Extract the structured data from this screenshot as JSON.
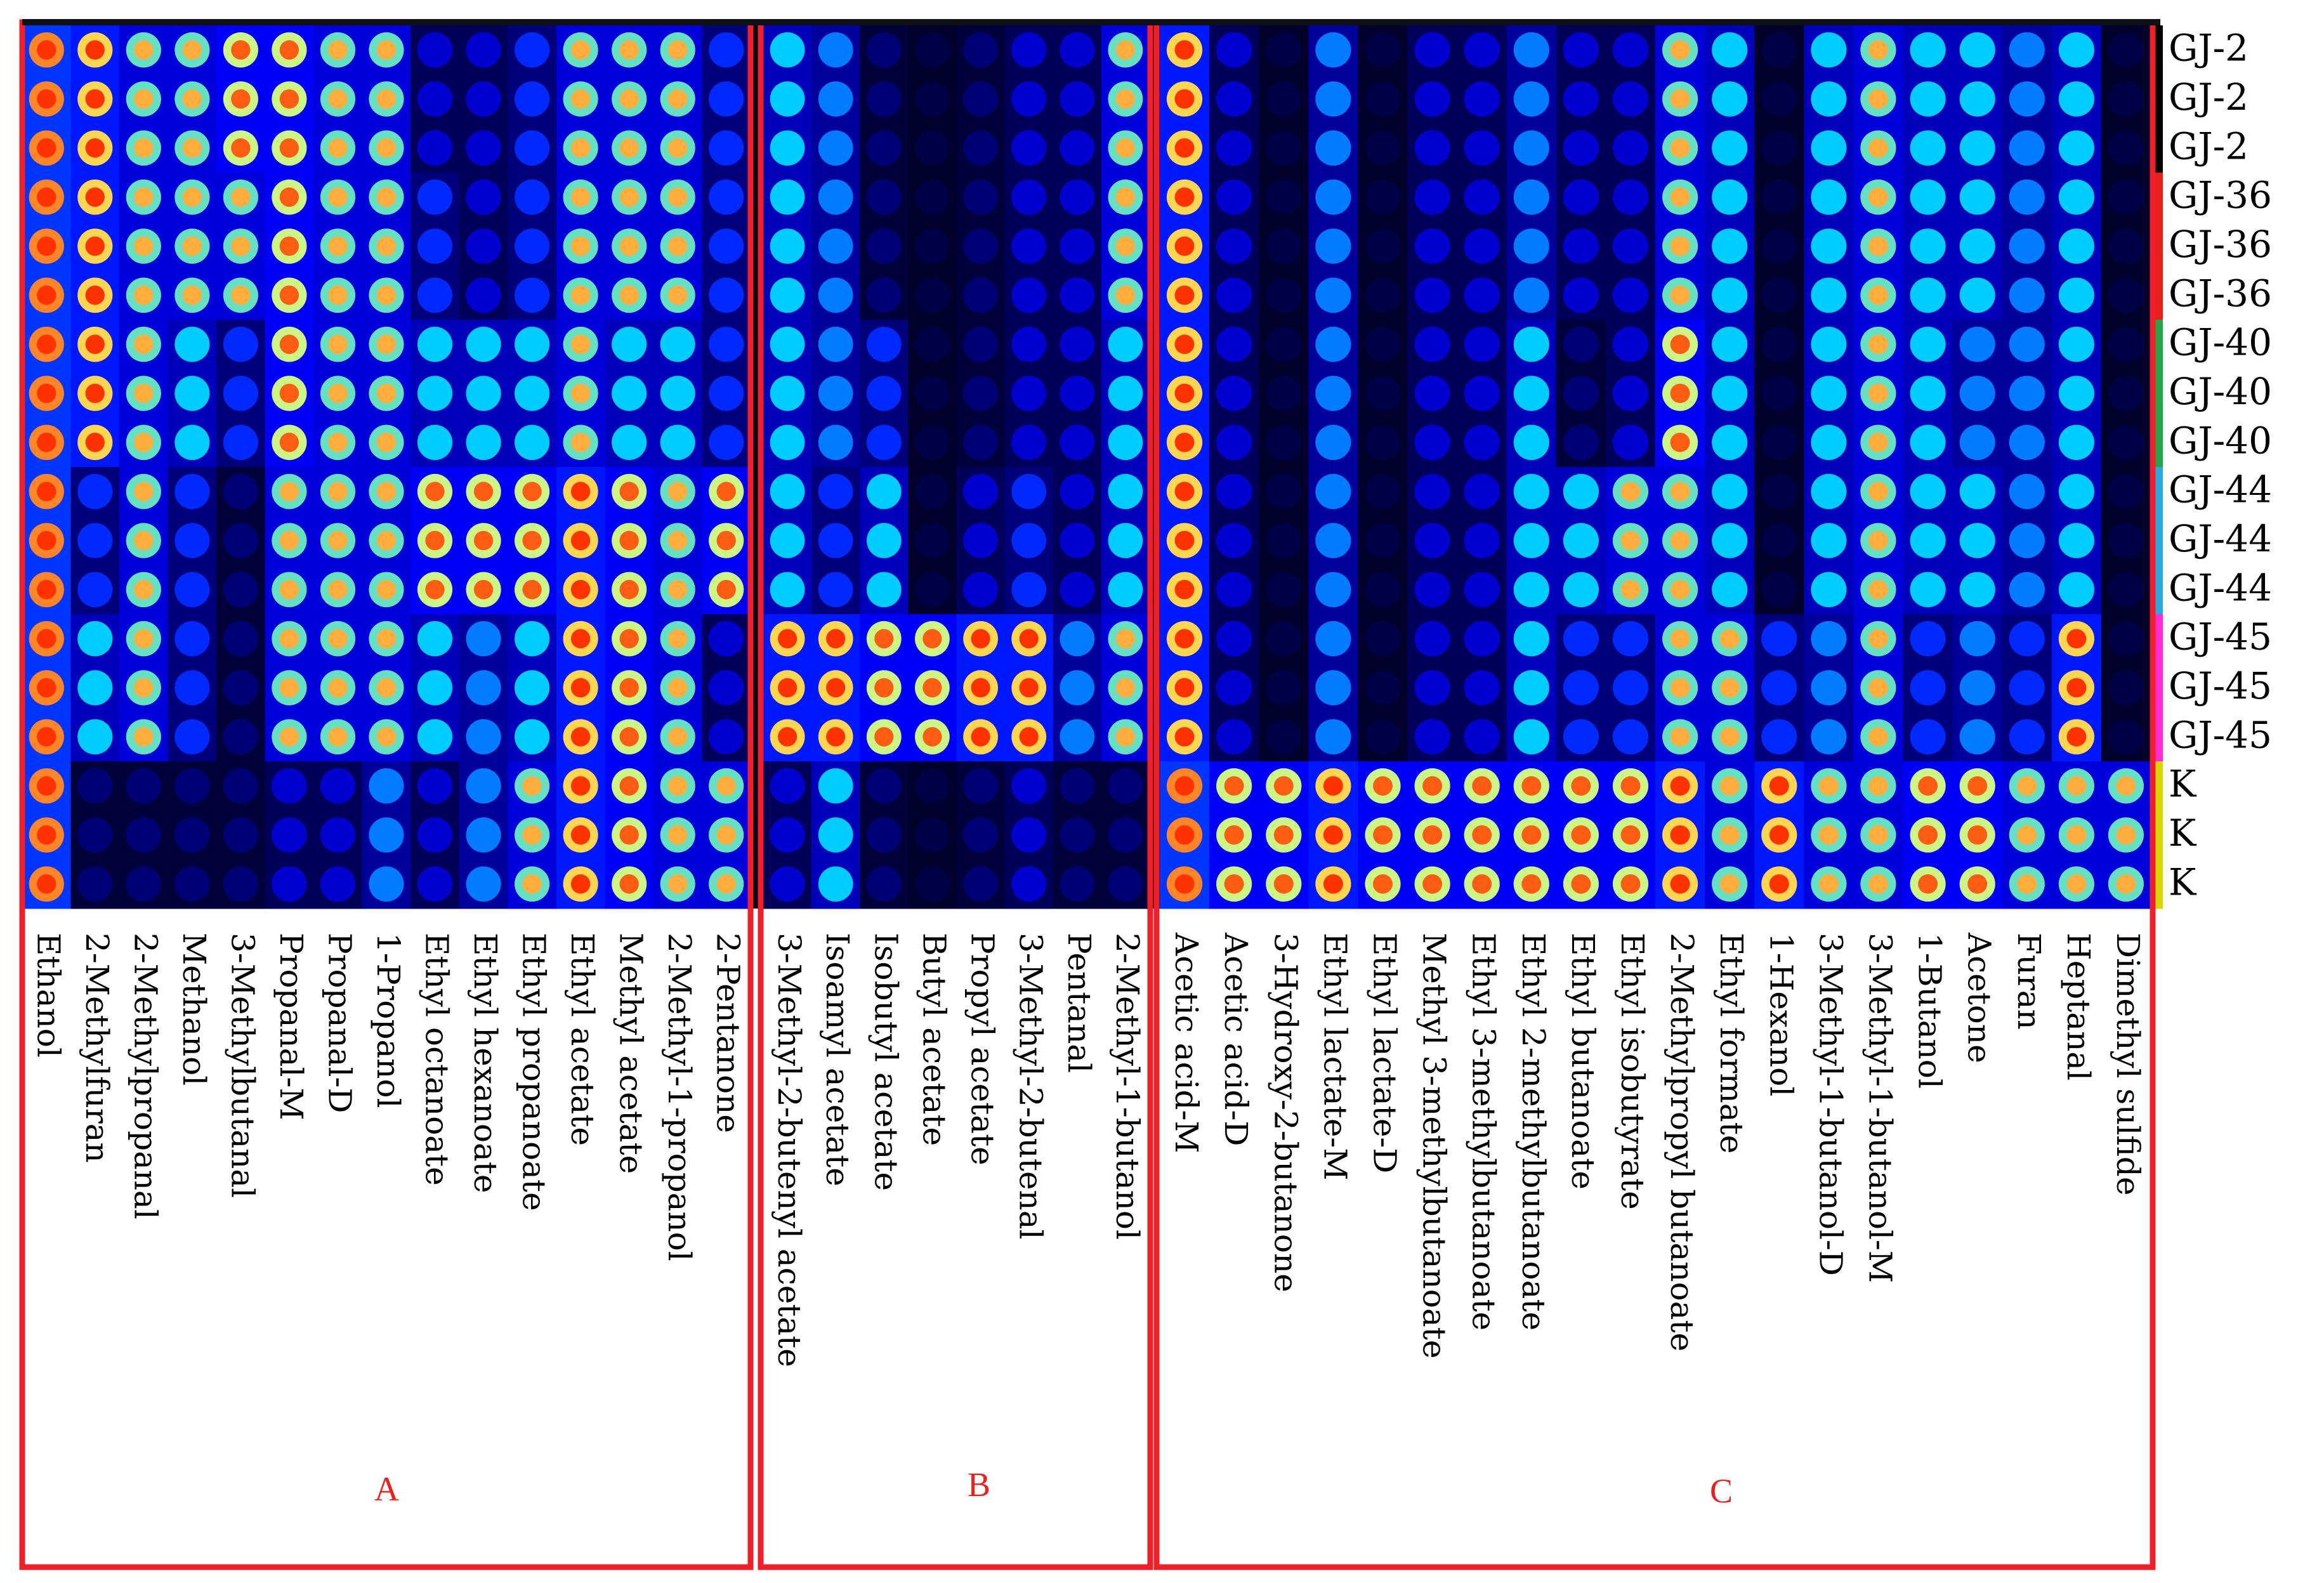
{
  "chart_data": {
    "type": "heatmap",
    "title": "",
    "xlabel": "",
    "ylabel": "",
    "groups": [
      {
        "label": "A",
        "compounds": [
          "Ethanol",
          "2-Methylfuran",
          "2-Methylpropanal",
          "Methanol",
          "3-Methylbutanal",
          "Propanal-M",
          "Propanal-D",
          "1-Propanol",
          "Ethyl octanoate",
          "Ethyl hexanoate",
          "Ethyl propanoate",
          "Ethyl acetate",
          "Methyl acetate",
          "2-Methyl-1-propanol",
          "2-Pentanone"
        ]
      },
      {
        "label": "B",
        "compounds": [
          "3-Methyl-2-butenyl acetate",
          "Isoamyl acetate",
          "Isobutyl acetate",
          "Butyl acetate",
          "Propyl acetate",
          "3-Methyl-2-butenal",
          "Pentanal",
          "2-Methyl-1-butanol"
        ]
      },
      {
        "label": "C",
        "compounds": [
          "Acetic acid-M",
          "Acetic acid-D",
          "3-Hydroxy-2-butanone",
          "Ethyl lactate-M",
          "Ethyl lactate-D",
          "Methyl 3-methylbutanoate",
          "Ethyl 3-methylbutanoate",
          "Ethyl 2-methylbutanoate",
          "Ethyl butanoate",
          "Ethyl isobutyrate",
          "2-Methylpropyl butanoate",
          "Ethyl formate",
          "1-Hexanol",
          "3-Methyl-1-butanol-D",
          "3-Methyl-1-butanol-M",
          "1-Butanol",
          "Acetone",
          "Furan",
          "Heptanal",
          "Dimethyl sulfide"
        ]
      }
    ],
    "samples": [
      "GJ-2",
      "GJ-2",
      "GJ-2",
      "GJ-36",
      "GJ-36",
      "GJ-36",
      "GJ-40",
      "GJ-40",
      "GJ-40",
      "GJ-44",
      "GJ-44",
      "GJ-44",
      "GJ-45",
      "GJ-45",
      "GJ-45",
      "K",
      "K",
      "K"
    ],
    "sample_colors": {
      "GJ-2": "#000000",
      "GJ-36": "#e8211f",
      "GJ-40": "#23a34a",
      "GJ-44": "#2aa8e0",
      "GJ-45": "#ff2bd6",
      "K": "#d8d800"
    },
    "colorscale": [
      "#00001a",
      "#0000ff",
      "#00ccff",
      "#ffff66",
      "#ff3300"
    ],
    "values": [
      [
        0.9,
        0.8,
        0.6,
        0.6,
        0.7,
        0.7,
        0.6,
        0.6,
        0.2,
        0.2,
        0.3,
        0.6,
        0.6,
        0.6,
        0.3,
        0.5,
        0.4,
        0.1,
        0.05,
        0.1,
        0.2,
        0.2,
        0.6,
        0.8,
        0.2,
        0.05,
        0.4,
        0.05,
        0.2,
        0.2,
        0.4,
        0.2,
        0.2,
        0.6,
        0.5,
        0.05,
        0.5,
        0.6,
        0.5,
        0.5,
        0.4,
        0.5,
        0.05
      ],
      [
        0.9,
        0.8,
        0.6,
        0.6,
        0.7,
        0.7,
        0.6,
        0.6,
        0.2,
        0.2,
        0.3,
        0.6,
        0.6,
        0.6,
        0.3,
        0.5,
        0.4,
        0.1,
        0.05,
        0.1,
        0.2,
        0.2,
        0.6,
        0.8,
        0.2,
        0.05,
        0.4,
        0.05,
        0.2,
        0.2,
        0.4,
        0.2,
        0.2,
        0.6,
        0.5,
        0.05,
        0.5,
        0.6,
        0.5,
        0.5,
        0.4,
        0.5,
        0.05
      ],
      [
        0.9,
        0.8,
        0.6,
        0.6,
        0.7,
        0.7,
        0.6,
        0.6,
        0.2,
        0.2,
        0.3,
        0.6,
        0.6,
        0.6,
        0.3,
        0.5,
        0.4,
        0.1,
        0.05,
        0.1,
        0.2,
        0.2,
        0.6,
        0.8,
        0.2,
        0.05,
        0.4,
        0.05,
        0.2,
        0.2,
        0.4,
        0.2,
        0.2,
        0.6,
        0.5,
        0.05,
        0.5,
        0.6,
        0.5,
        0.5,
        0.4,
        0.5,
        0.05
      ],
      [
        0.9,
        0.8,
        0.6,
        0.6,
        0.6,
        0.7,
        0.6,
        0.6,
        0.3,
        0.2,
        0.3,
        0.6,
        0.6,
        0.6,
        0.3,
        0.5,
        0.4,
        0.1,
        0.05,
        0.1,
        0.2,
        0.2,
        0.6,
        0.8,
        0.2,
        0.05,
        0.4,
        0.05,
        0.2,
        0.2,
        0.4,
        0.2,
        0.2,
        0.6,
        0.5,
        0.05,
        0.5,
        0.6,
        0.5,
        0.5,
        0.4,
        0.5,
        0.05
      ],
      [
        0.9,
        0.8,
        0.6,
        0.6,
        0.6,
        0.7,
        0.6,
        0.6,
        0.3,
        0.2,
        0.3,
        0.6,
        0.6,
        0.6,
        0.3,
        0.5,
        0.4,
        0.1,
        0.05,
        0.1,
        0.2,
        0.2,
        0.6,
        0.8,
        0.2,
        0.05,
        0.4,
        0.05,
        0.2,
        0.2,
        0.4,
        0.2,
        0.2,
        0.6,
        0.5,
        0.05,
        0.5,
        0.6,
        0.5,
        0.5,
        0.4,
        0.5,
        0.05
      ],
      [
        0.9,
        0.8,
        0.6,
        0.6,
        0.6,
        0.7,
        0.6,
        0.6,
        0.3,
        0.2,
        0.3,
        0.6,
        0.6,
        0.6,
        0.3,
        0.5,
        0.4,
        0.1,
        0.05,
        0.1,
        0.2,
        0.2,
        0.6,
        0.8,
        0.2,
        0.05,
        0.4,
        0.05,
        0.2,
        0.2,
        0.4,
        0.2,
        0.2,
        0.6,
        0.5,
        0.05,
        0.5,
        0.6,
        0.5,
        0.5,
        0.4,
        0.5,
        0.05
      ],
      [
        0.9,
        0.8,
        0.6,
        0.5,
        0.3,
        0.7,
        0.6,
        0.6,
        0.5,
        0.5,
        0.5,
        0.6,
        0.5,
        0.5,
        0.3,
        0.5,
        0.4,
        0.3,
        0.05,
        0.1,
        0.2,
        0.2,
        0.5,
        0.8,
        0.2,
        0.05,
        0.4,
        0.05,
        0.2,
        0.2,
        0.5,
        0.1,
        0.2,
        0.7,
        0.5,
        0.05,
        0.5,
        0.6,
        0.5,
        0.4,
        0.4,
        0.5,
        0.05
      ],
      [
        0.9,
        0.8,
        0.6,
        0.5,
        0.3,
        0.7,
        0.6,
        0.6,
        0.5,
        0.5,
        0.5,
        0.6,
        0.5,
        0.5,
        0.3,
        0.5,
        0.4,
        0.3,
        0.05,
        0.1,
        0.2,
        0.2,
        0.5,
        0.8,
        0.2,
        0.05,
        0.4,
        0.05,
        0.2,
        0.2,
        0.5,
        0.1,
        0.2,
        0.7,
        0.5,
        0.05,
        0.5,
        0.6,
        0.5,
        0.4,
        0.4,
        0.5,
        0.05
      ],
      [
        0.9,
        0.8,
        0.6,
        0.5,
        0.3,
        0.7,
        0.6,
        0.6,
        0.5,
        0.5,
        0.5,
        0.6,
        0.5,
        0.5,
        0.3,
        0.5,
        0.4,
        0.3,
        0.05,
        0.1,
        0.2,
        0.2,
        0.5,
        0.8,
        0.2,
        0.05,
        0.4,
        0.05,
        0.2,
        0.2,
        0.5,
        0.1,
        0.2,
        0.7,
        0.5,
        0.05,
        0.5,
        0.6,
        0.5,
        0.4,
        0.4,
        0.5,
        0.05
      ],
      [
        0.9,
        0.3,
        0.6,
        0.3,
        0.1,
        0.6,
        0.6,
        0.6,
        0.7,
        0.7,
        0.7,
        0.8,
        0.7,
        0.6,
        0.7,
        0.5,
        0.3,
        0.5,
        0.05,
        0.2,
        0.3,
        0.2,
        0.5,
        0.8,
        0.2,
        0.05,
        0.4,
        0.05,
        0.2,
        0.2,
        0.5,
        0.5,
        0.6,
        0.6,
        0.5,
        0.05,
        0.5,
        0.6,
        0.5,
        0.5,
        0.4,
        0.5,
        0.05
      ],
      [
        0.9,
        0.3,
        0.6,
        0.3,
        0.1,
        0.6,
        0.6,
        0.6,
        0.7,
        0.7,
        0.7,
        0.8,
        0.7,
        0.6,
        0.7,
        0.5,
        0.3,
        0.5,
        0.05,
        0.2,
        0.3,
        0.2,
        0.5,
        0.8,
        0.2,
        0.05,
        0.4,
        0.05,
        0.2,
        0.2,
        0.5,
        0.5,
        0.6,
        0.6,
        0.5,
        0.05,
        0.5,
        0.6,
        0.5,
        0.5,
        0.4,
        0.5,
        0.05
      ],
      [
        0.9,
        0.3,
        0.6,
        0.3,
        0.1,
        0.6,
        0.6,
        0.6,
        0.7,
        0.7,
        0.7,
        0.8,
        0.7,
        0.6,
        0.7,
        0.5,
        0.3,
        0.5,
        0.05,
        0.2,
        0.3,
        0.2,
        0.5,
        0.8,
        0.2,
        0.05,
        0.4,
        0.05,
        0.2,
        0.2,
        0.5,
        0.5,
        0.6,
        0.6,
        0.5,
        0.05,
        0.5,
        0.6,
        0.5,
        0.5,
        0.4,
        0.5,
        0.05
      ],
      [
        0.9,
        0.5,
        0.6,
        0.3,
        0.1,
        0.6,
        0.6,
        0.6,
        0.5,
        0.4,
        0.5,
        0.8,
        0.7,
        0.6,
        0.2,
        0.8,
        0.8,
        0.7,
        0.7,
        0.8,
        0.8,
        0.4,
        0.6,
        0.8,
        0.2,
        0.05,
        0.4,
        0.05,
        0.2,
        0.2,
        0.5,
        0.3,
        0.3,
        0.6,
        0.6,
        0.3,
        0.4,
        0.6,
        0.3,
        0.4,
        0.3,
        0.8,
        0.05
      ],
      [
        0.9,
        0.5,
        0.6,
        0.3,
        0.1,
        0.6,
        0.6,
        0.6,
        0.5,
        0.4,
        0.5,
        0.8,
        0.7,
        0.6,
        0.2,
        0.8,
        0.8,
        0.7,
        0.7,
        0.8,
        0.8,
        0.4,
        0.6,
        0.8,
        0.2,
        0.05,
        0.4,
        0.05,
        0.2,
        0.2,
        0.5,
        0.3,
        0.3,
        0.6,
        0.6,
        0.3,
        0.4,
        0.6,
        0.3,
        0.4,
        0.3,
        0.8,
        0.05
      ],
      [
        0.9,
        0.5,
        0.6,
        0.3,
        0.1,
        0.6,
        0.6,
        0.6,
        0.5,
        0.4,
        0.5,
        0.8,
        0.7,
        0.6,
        0.2,
        0.8,
        0.8,
        0.7,
        0.7,
        0.8,
        0.8,
        0.4,
        0.6,
        0.8,
        0.2,
        0.05,
        0.4,
        0.05,
        0.2,
        0.2,
        0.5,
        0.3,
        0.3,
        0.6,
        0.6,
        0.3,
        0.4,
        0.6,
        0.3,
        0.4,
        0.3,
        0.8,
        0.05
      ],
      [
        0.9,
        0.1,
        0.1,
        0.1,
        0.1,
        0.2,
        0.2,
        0.4,
        0.2,
        0.4,
        0.6,
        0.8,
        0.7,
        0.6,
        0.6,
        0.2,
        0.5,
        0.1,
        0.05,
        0.1,
        0.2,
        0.1,
        0.1,
        0.9,
        0.7,
        0.7,
        0.8,
        0.7,
        0.7,
        0.7,
        0.7,
        0.7,
        0.7,
        0.8,
        0.6,
        0.8,
        0.6,
        0.6,
        0.7,
        0.7,
        0.6,
        0.6,
        0.6
      ],
      [
        0.9,
        0.1,
        0.1,
        0.1,
        0.1,
        0.2,
        0.2,
        0.4,
        0.2,
        0.4,
        0.6,
        0.8,
        0.7,
        0.6,
        0.6,
        0.2,
        0.5,
        0.1,
        0.05,
        0.1,
        0.2,
        0.1,
        0.1,
        0.9,
        0.7,
        0.7,
        0.8,
        0.7,
        0.7,
        0.7,
        0.7,
        0.7,
        0.7,
        0.8,
        0.6,
        0.8,
        0.6,
        0.6,
        0.7,
        0.7,
        0.6,
        0.6,
        0.6
      ],
      [
        0.9,
        0.1,
        0.1,
        0.1,
        0.1,
        0.2,
        0.2,
        0.4,
        0.2,
        0.4,
        0.6,
        0.8,
        0.7,
        0.6,
        0.6,
        0.2,
        0.5,
        0.1,
        0.05,
        0.1,
        0.2,
        0.1,
        0.1,
        0.9,
        0.7,
        0.7,
        0.8,
        0.7,
        0.7,
        0.7,
        0.7,
        0.7,
        0.7,
        0.8,
        0.6,
        0.8,
        0.6,
        0.6,
        0.7,
        0.7,
        0.6,
        0.6,
        0.6
      ]
    ],
    "grid": false,
    "legend": "right"
  }
}
